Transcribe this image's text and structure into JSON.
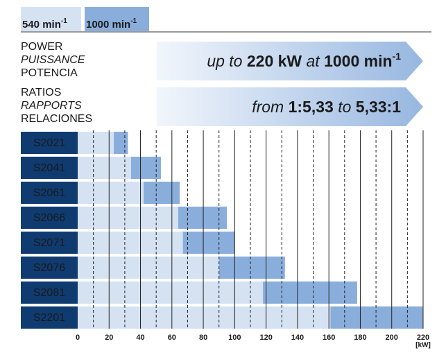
{
  "chart_data": {
    "type": "range-bar",
    "series": [
      {
        "name": "540 min",
        "sup": "-1",
        "color": "#d5e2f2",
        "values": [
          25,
          36,
          44,
          66,
          69,
          92,
          120,
          163
        ]
      },
      {
        "name": "1000 min",
        "sup": "-1",
        "color": "#8aaedc",
        "low": [
          23,
          34,
          42,
          64,
          67,
          90,
          118,
          161
        ],
        "high": [
          32,
          53,
          65,
          95,
          100,
          132,
          178,
          220
        ]
      }
    ],
    "categories": [
      "S2021",
      "S2041",
      "S2061",
      "S2066",
      "S2071",
      "S2076",
      "S2081",
      "S2201"
    ],
    "info": [
      {
        "labels": [
          "POWER",
          "PUISSANCE",
          "POTENCIA"
        ],
        "parts": [
          {
            "text": "up to ",
            "bold": false
          },
          {
            "text": "220 kW",
            "bold": true
          },
          {
            "text": " at ",
            "bold": false
          },
          {
            "text": "1000 min",
            "bold": true
          },
          {
            "text": "-1",
            "bold": true,
            "sup": true
          }
        ]
      },
      {
        "labels": [
          "RATIOS",
          "RAPPORTS",
          "RELACIONES"
        ],
        "parts": [
          {
            "text": "from ",
            "bold": false
          },
          {
            "text": "1:5,33",
            "bold": true
          },
          {
            "text": " to ",
            "bold": false
          },
          {
            "text": "5,33:1",
            "bold": true
          }
        ]
      }
    ],
    "xlim": [
      0,
      220
    ],
    "xticks": [
      0,
      20,
      40,
      60,
      80,
      100,
      120,
      140,
      160,
      180,
      200,
      220
    ],
    "minor_ticks": [
      10,
      30,
      50,
      70,
      90,
      110,
      130,
      150,
      170,
      190,
      210
    ],
    "xlabel": "[kW]",
    "label_color": "#0f3b70"
  }
}
